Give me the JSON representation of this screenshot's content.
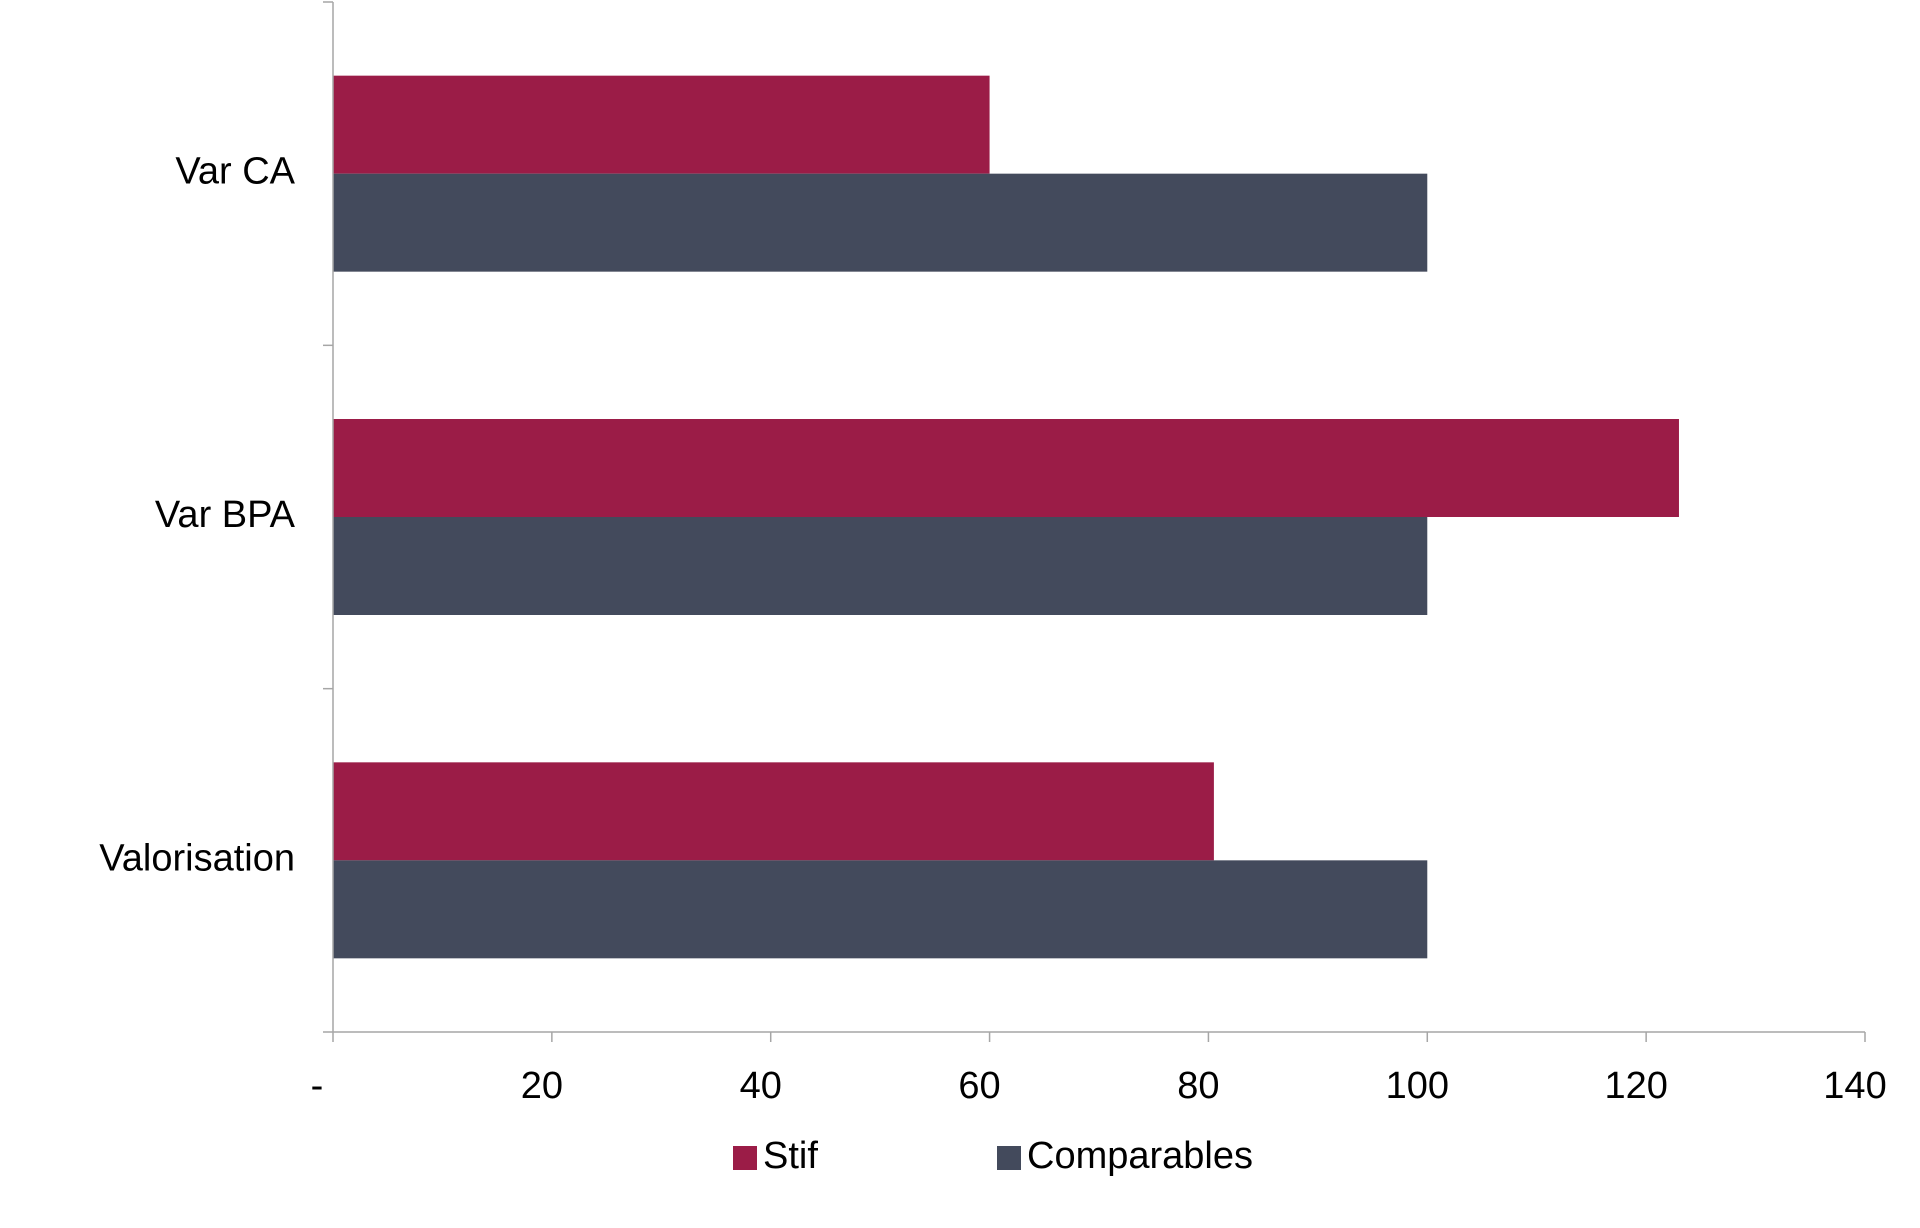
{
  "chart_data": {
    "type": "bar",
    "orientation": "horizontal",
    "categories": [
      "Var CA",
      "Var BPA",
      "Valorisation"
    ],
    "series": [
      {
        "name": "Stif",
        "color": "#9b1c47",
        "values": [
          60,
          123,
          80.5
        ]
      },
      {
        "name": "Comparables",
        "color": "#434a5c",
        "values": [
          100,
          100,
          100
        ]
      }
    ],
    "xlim": [
      0,
      140
    ],
    "xticks": [
      0,
      20,
      40,
      60,
      80,
      100,
      120,
      140
    ],
    "xtick_labels": [
      "-",
      "20",
      "40",
      "60",
      "80",
      "100",
      "120",
      "140"
    ],
    "title": "",
    "xlabel": "",
    "ylabel": "",
    "grid": false,
    "legend_position": "bottom"
  }
}
